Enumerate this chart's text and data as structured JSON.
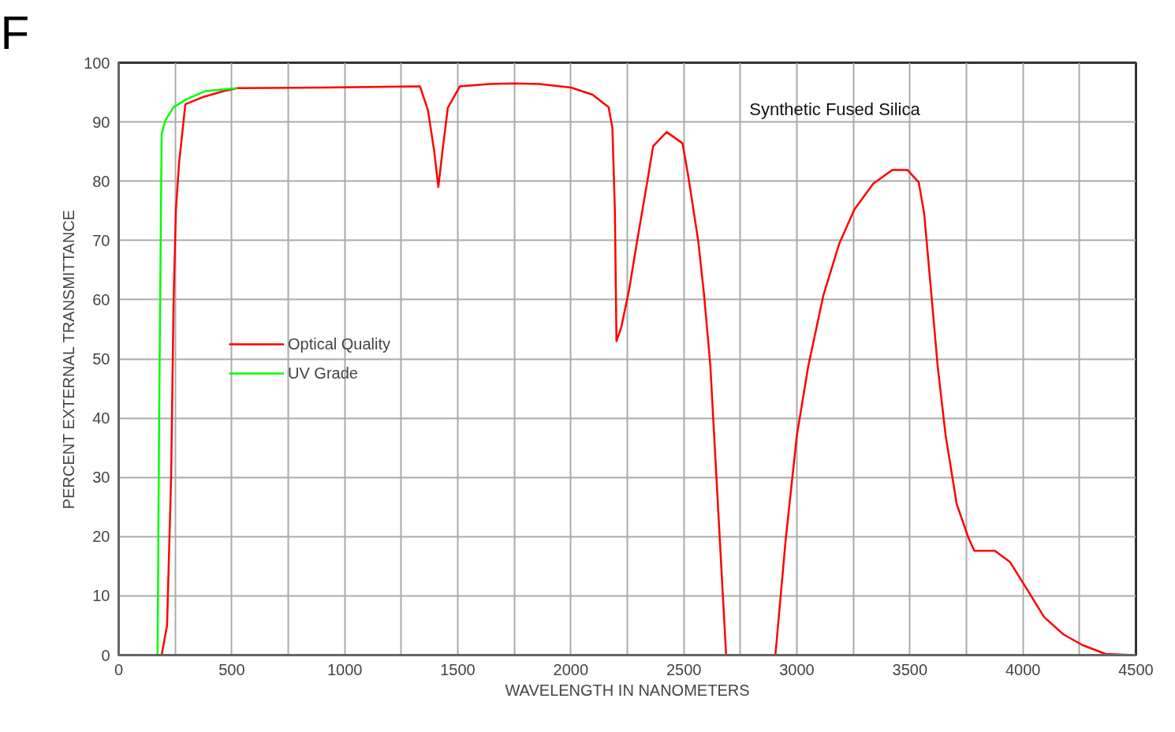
{
  "chart_data": {
    "type": "line",
    "xlabel": "WAVELENGTH IN NANOMETERS",
    "ylabel": "PERCENT EXTERNAL TRANSMITTANCE",
    "annotations": [
      "F",
      "Synthetic Fused Silica"
    ],
    "series": [
      {
        "name": "Optical Quality",
        "color": "#ff0000",
        "x": [
          190,
          214,
          232,
          243,
          253,
          267,
          295,
          373,
          464,
          524,
          900,
          1333,
          1368,
          1396,
          1414,
          1432,
          1456,
          1509,
          1639,
          1750,
          1861,
          2001,
          2096,
          2167,
          2184,
          2195,
          2202,
          2223,
          2258,
          2293,
          2343,
          2364,
          2424,
          2494,
          2519,
          2564,
          2589,
          2617,
          2687,
          2905,
          2951,
          3000,
          3050,
          3117,
          3187,
          3254,
          3338,
          3422,
          3489,
          3539,
          3563,
          3591,
          3623,
          3658,
          3707,
          3760,
          3785,
          3876,
          3943,
          4010,
          4094,
          4179,
          4263,
          4365,
          4485
        ],
        "values": [
          0,
          5,
          30,
          60,
          75,
          83,
          93,
          94.2,
          95.2,
          95.7,
          95.8,
          96.0,
          92,
          85,
          79,
          85,
          92.4,
          96.0,
          96.4,
          96.5,
          96.4,
          95.8,
          94.6,
          92.5,
          89,
          75,
          53,
          55.3,
          61.7,
          69.8,
          81,
          85.9,
          88.3,
          86.4,
          81,
          69.8,
          61,
          49,
          0,
          0,
          19.7,
          37.1,
          48.7,
          60.7,
          69.4,
          75.2,
          79.6,
          81.9,
          81.9,
          79.8,
          74.6,
          62.6,
          48.7,
          37.1,
          25.5,
          19.7,
          17.6,
          17.6,
          15.7,
          11.6,
          6.4,
          3.5,
          1.7,
          0.2,
          0
        ]
      },
      {
        "name": "UV Grade",
        "color": "#00ff00",
        "x": [
          172,
          179,
          190,
          207,
          243,
          303,
          383,
          524
        ],
        "values": [
          0,
          40,
          88,
          90.3,
          92.5,
          93.9,
          95.2,
          95.7
        ]
      }
    ],
    "xlim": [
      0,
      4500
    ],
    "ylim": [
      0,
      100
    ],
    "xticks": [
      0,
      {
        "value": 250,
        "label": null
      },
      500,
      {
        "value": 750,
        "label": null
      },
      1000,
      {
        "value": 1250,
        "label": null
      },
      1500,
      {
        "value": 1750,
        "label": null
      },
      2000,
      {
        "value": 2250,
        "label": null
      },
      2500,
      {
        "value": 2750,
        "label": null
      },
      3000,
      {
        "value": 3250,
        "label": null
      },
      3500,
      {
        "value": 3750,
        "label": null
      },
      4000,
      {
        "value": 4250,
        "label": null
      },
      4500
    ],
    "yticks": [
      0,
      10,
      20,
      30,
      40,
      50,
      60,
      70,
      80,
      90,
      100
    ],
    "grid": true,
    "legend": "left",
    "marker": "none",
    "line_style": "solid"
  }
}
